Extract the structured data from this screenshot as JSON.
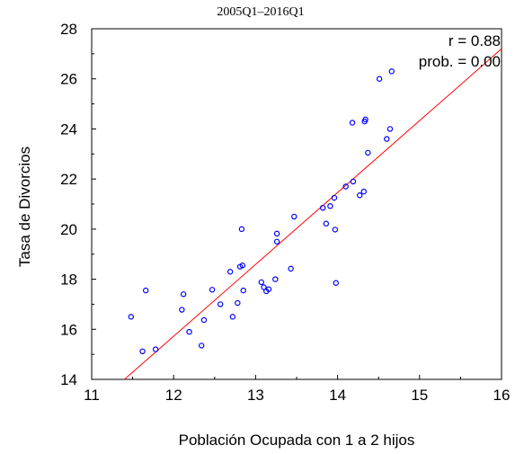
{
  "chart_data": {
    "type": "scatter",
    "title": "2005Q1–2016Q1",
    "xlabel": "Población Ocupada con 1 a 2 hijos",
    "ylabel": "Tasa de Divorcios",
    "xlim": [
      11,
      16
    ],
    "ylim": [
      14,
      28
    ],
    "xticks": [
      "11",
      "12",
      "13",
      "14",
      "15",
      "16"
    ],
    "yticks": [
      "14",
      "16",
      "18",
      "20",
      "22",
      "24",
      "26",
      "28"
    ],
    "annotations": [
      "r = 0.88",
      "prob. = 0.00"
    ],
    "grid": false,
    "colors": {
      "points": "#0000ff",
      "fit_line": "#ff0000",
      "axes": "#000000"
    },
    "fit_line": {
      "x": [
        11.4,
        16.0
      ],
      "y": [
        14.0,
        27.2
      ]
    },
    "points": [
      {
        "x": 11.48,
        "y": 16.5
      },
      {
        "x": 11.62,
        "y": 15.12
      },
      {
        "x": 11.66,
        "y": 17.55
      },
      {
        "x": 11.78,
        "y": 15.2
      },
      {
        "x": 12.1,
        "y": 16.78
      },
      {
        "x": 12.12,
        "y": 17.4
      },
      {
        "x": 12.19,
        "y": 15.9
      },
      {
        "x": 12.34,
        "y": 15.35
      },
      {
        "x": 12.37,
        "y": 16.37
      },
      {
        "x": 12.47,
        "y": 17.58
      },
      {
        "x": 12.57,
        "y": 17.0
      },
      {
        "x": 12.69,
        "y": 18.3
      },
      {
        "x": 12.72,
        "y": 16.5
      },
      {
        "x": 12.78,
        "y": 17.05
      },
      {
        "x": 12.81,
        "y": 18.5
      },
      {
        "x": 12.84,
        "y": 18.55
      },
      {
        "x": 12.83,
        "y": 20.0
      },
      {
        "x": 12.85,
        "y": 17.55
      },
      {
        "x": 13.07,
        "y": 17.88
      },
      {
        "x": 13.1,
        "y": 17.68
      },
      {
        "x": 13.13,
        "y": 17.52
      },
      {
        "x": 13.16,
        "y": 17.6
      },
      {
        "x": 13.24,
        "y": 18.0
      },
      {
        "x": 13.26,
        "y": 19.5
      },
      {
        "x": 13.26,
        "y": 19.82
      },
      {
        "x": 13.43,
        "y": 18.42
      },
      {
        "x": 13.47,
        "y": 20.5
      },
      {
        "x": 13.82,
        "y": 20.85
      },
      {
        "x": 13.86,
        "y": 20.22
      },
      {
        "x": 13.91,
        "y": 20.92
      },
      {
        "x": 13.96,
        "y": 21.25
      },
      {
        "x": 13.97,
        "y": 19.98
      },
      {
        "x": 13.98,
        "y": 17.85
      },
      {
        "x": 14.1,
        "y": 21.7
      },
      {
        "x": 14.19,
        "y": 21.9
      },
      {
        "x": 14.18,
        "y": 24.25
      },
      {
        "x": 14.27,
        "y": 21.35
      },
      {
        "x": 14.32,
        "y": 21.5
      },
      {
        "x": 14.33,
        "y": 24.3
      },
      {
        "x": 14.34,
        "y": 24.38
      },
      {
        "x": 14.37,
        "y": 23.05
      },
      {
        "x": 14.51,
        "y": 26.0
      },
      {
        "x": 14.6,
        "y": 23.6
      },
      {
        "x": 14.64,
        "y": 24.0
      },
      {
        "x": 14.66,
        "y": 26.3
      }
    ]
  }
}
